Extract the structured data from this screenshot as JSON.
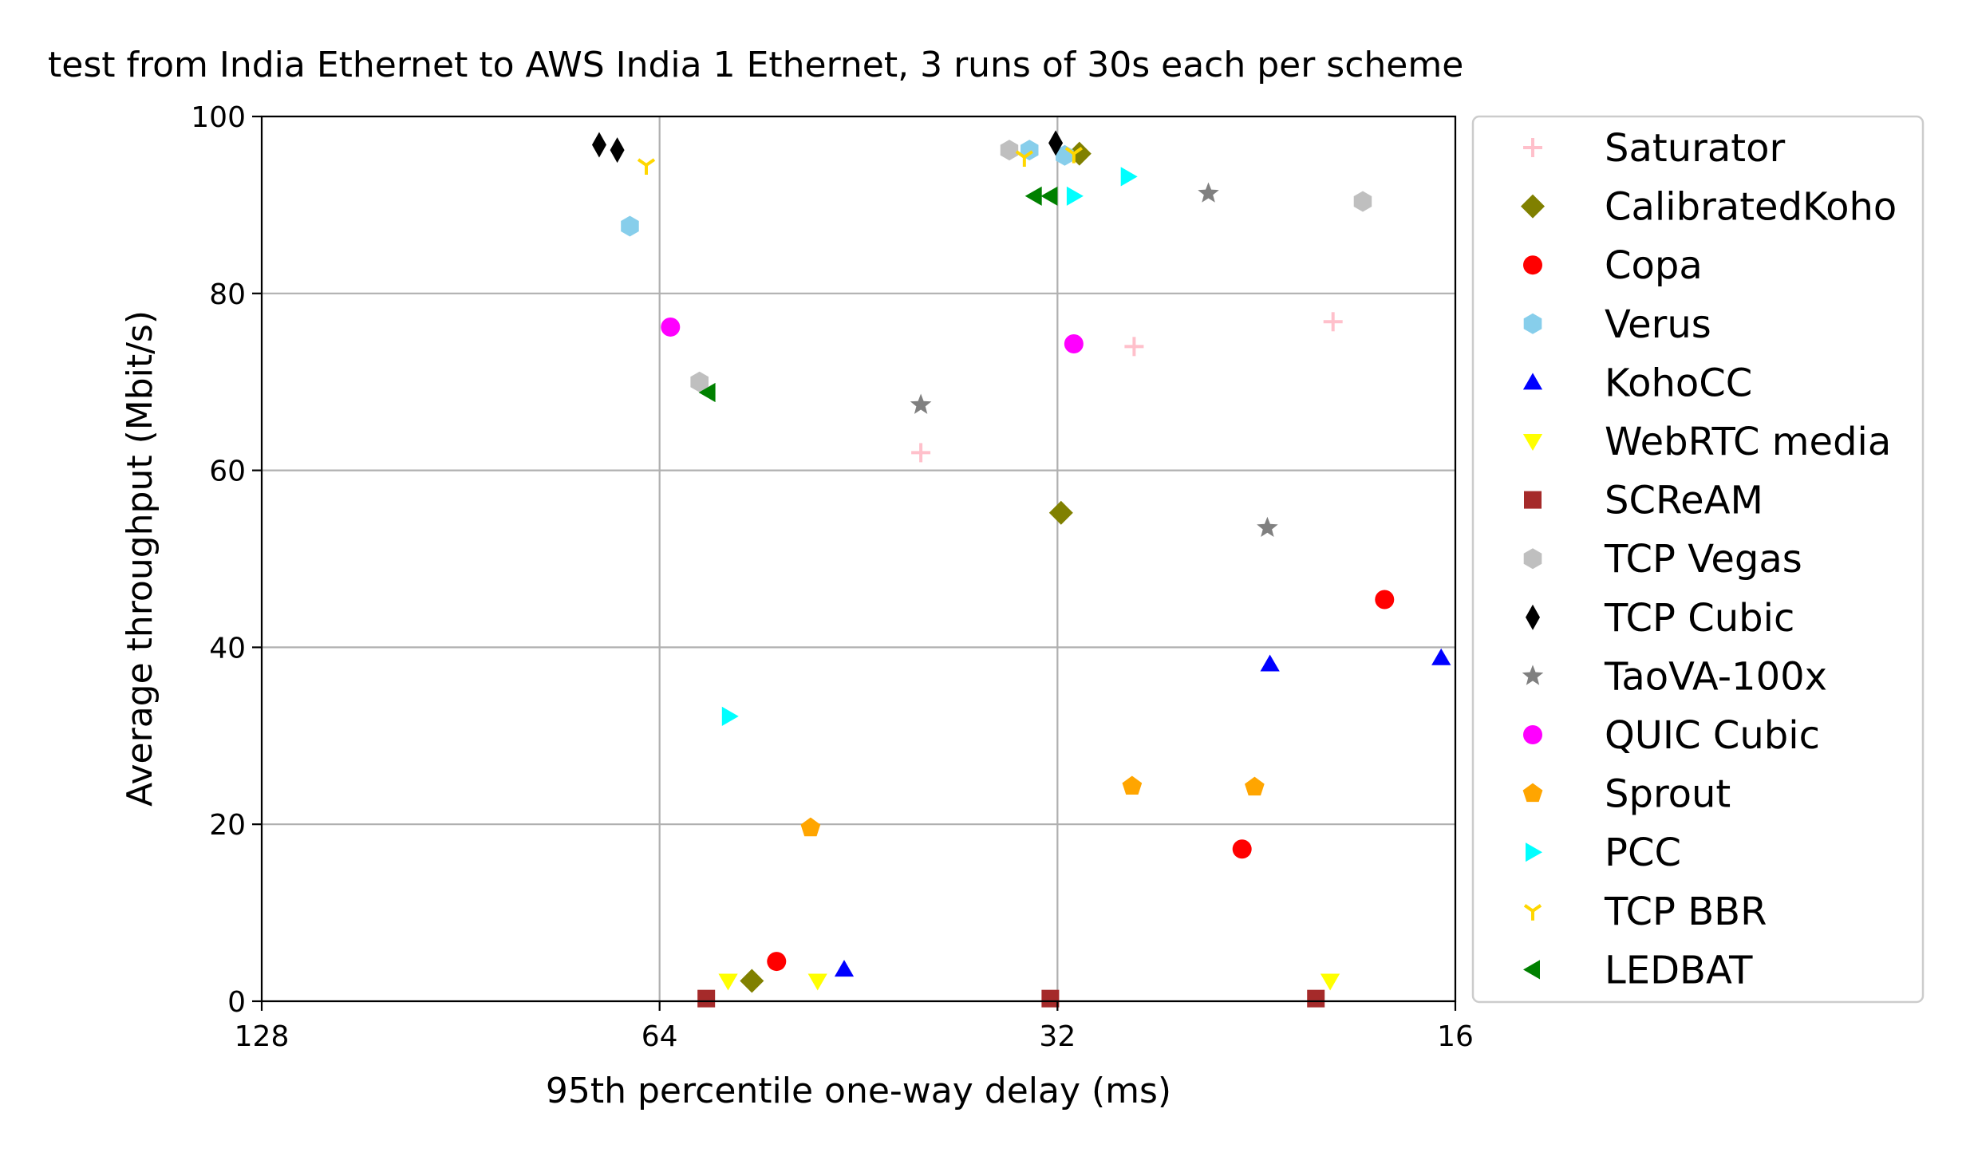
{
  "chart_data": {
    "type": "scatter",
    "title": "test from India Ethernet to AWS India 1 Ethernet, 3 runs of 30s each per scheme",
    "xlabel": "95th percentile one-way delay (ms)",
    "ylabel": "Average throughput (Mbit/s)",
    "x_scale": "log2",
    "x_inverted": true,
    "xlim": [
      128,
      16
    ],
    "ylim": [
      0,
      100
    ],
    "x_ticks": [
      128,
      64,
      32,
      16
    ],
    "y_ticks": [
      0,
      20,
      40,
      60,
      80,
      100
    ],
    "grid": true,
    "legend_position": "outside-right",
    "series": [
      {
        "name": "Saturator",
        "marker": "plus",
        "color": "#ffc0cb",
        "points": [
          [
            40.6,
            62.0
          ],
          [
            28.0,
            74.0
          ],
          [
            19.8,
            76.8
          ]
        ]
      },
      {
        "name": "CalibratedKoho",
        "marker": "diamond",
        "color": "#808000",
        "points": [
          [
            54.5,
            2.3
          ],
          [
            30.8,
            95.8
          ],
          [
            31.8,
            55.2
          ]
        ]
      },
      {
        "name": "Copa",
        "marker": "circle",
        "color": "#ff0000",
        "points": [
          [
            52.2,
            4.5
          ],
          [
            23.2,
            17.2
          ],
          [
            18.1,
            45.4
          ]
        ]
      },
      {
        "name": "Verus",
        "marker": "hexagon",
        "color": "#87ceeb",
        "points": [
          [
            67.4,
            87.6
          ],
          [
            33.6,
            96.2
          ],
          [
            31.6,
            95.6
          ]
        ]
      },
      {
        "name": "KohoCC",
        "marker": "triangle-up",
        "color": "#0000ff",
        "points": [
          [
            46.4,
            3.6
          ],
          [
            22.1,
            38.1
          ],
          [
            16.4,
            38.8
          ]
        ]
      },
      {
        "name": "WebRTC media",
        "marker": "triangle-down",
        "color": "#ffff00",
        "points": [
          [
            56.8,
            2.3
          ],
          [
            48.6,
            2.3
          ],
          [
            19.9,
            2.3
          ]
        ]
      },
      {
        "name": "SCReAM",
        "marker": "square",
        "color": "#a52a2a",
        "points": [
          [
            59.0,
            0.3
          ],
          [
            32.4,
            0.3
          ],
          [
            20.4,
            0.3
          ]
        ]
      },
      {
        "name": "TCP Vegas",
        "marker": "hexagon",
        "color": "#bfbfbf",
        "points": [
          [
            59.7,
            70.0
          ],
          [
            34.8,
            96.2
          ],
          [
            18.8,
            90.4
          ]
        ]
      },
      {
        "name": "TCP Cubic",
        "marker": "thin-diamond",
        "color": "#000000",
        "points": [
          [
            71.1,
            96.8
          ],
          [
            68.9,
            96.2
          ],
          [
            32.1,
            97.0
          ]
        ]
      },
      {
        "name": "TaoVA-100x",
        "marker": "star",
        "color": "#808080",
        "points": [
          [
            40.6,
            67.4
          ],
          [
            24.6,
            91.3
          ],
          [
            22.2,
            53.5
          ]
        ]
      },
      {
        "name": "QUIC Cubic",
        "marker": "circle",
        "color": "#ff00ff",
        "points": [
          [
            62.8,
            76.2
          ],
          [
            31.1,
            74.3
          ]
        ]
      },
      {
        "name": "Sprout",
        "marker": "pentagon",
        "color": "#ffa500",
        "points": [
          [
            49.2,
            19.6
          ],
          [
            28.1,
            24.3
          ],
          [
            22.7,
            24.2
          ]
        ]
      },
      {
        "name": "PCC",
        "marker": "triangle-right",
        "color": "#00ffff",
        "points": [
          [
            56.7,
            32.2
          ],
          [
            28.3,
            93.2
          ],
          [
            31.1,
            91.0
          ]
        ]
      },
      {
        "name": "TCP BBR",
        "marker": "tri-down",
        "color": "#ffd700",
        "points": [
          [
            65.5,
            94.5
          ],
          [
            33.9,
            95.4
          ],
          [
            31.1,
            95.8
          ]
        ]
      },
      {
        "name": "LEDBAT",
        "marker": "triangle-left",
        "color": "#008000",
        "points": [
          [
            58.8,
            68.8
          ],
          [
            33.3,
            91.0
          ],
          [
            32.4,
            91.0
          ]
        ]
      }
    ]
  }
}
